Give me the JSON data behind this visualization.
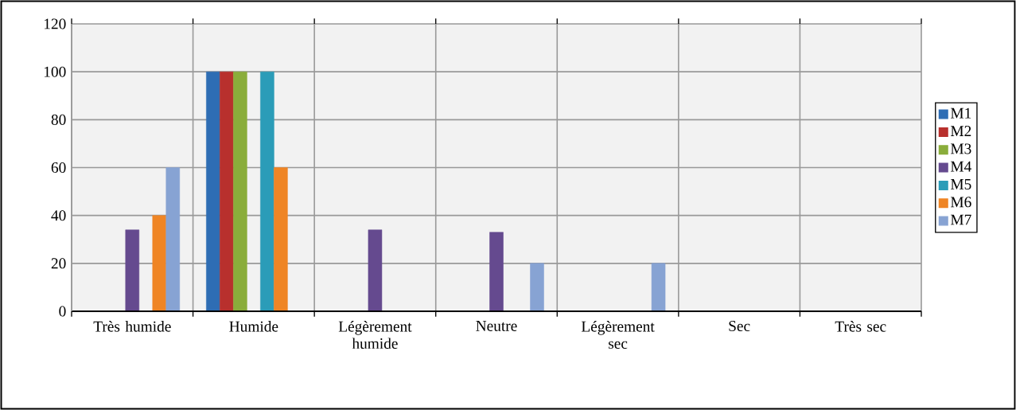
{
  "chart_data": {
    "type": "bar",
    "categories": [
      "Très humide",
      "Humide",
      "Légèrement humide",
      "Neutre",
      "Légèrement sec",
      "Sec",
      "Très sec"
    ],
    "series": [
      {
        "name": "M1",
        "color": "#2e6db4",
        "values": [
          0,
          100,
          0,
          0,
          0,
          0,
          0
        ]
      },
      {
        "name": "M2",
        "color": "#b8302d",
        "values": [
          0,
          100,
          0,
          0,
          0,
          0,
          0
        ]
      },
      {
        "name": "M3",
        "color": "#8aad3b",
        "values": [
          0,
          100,
          0,
          0,
          0,
          0,
          0
        ]
      },
      {
        "name": "M4",
        "color": "#654a8f",
        "values": [
          34,
          0,
          34,
          33,
          0,
          0,
          0
        ]
      },
      {
        "name": "M5",
        "color": "#2b9cb8",
        "values": [
          0,
          100,
          0,
          0,
          0,
          0,
          0
        ]
      },
      {
        "name": "M6",
        "color": "#ef8525",
        "values": [
          40,
          60,
          0,
          0,
          0,
          0,
          0
        ]
      },
      {
        "name": "M7",
        "color": "#87a3d3",
        "values": [
          60,
          0,
          0,
          20,
          20,
          0,
          0
        ]
      }
    ],
    "ylim": [
      0,
      120
    ],
    "yticks": [
      0,
      20,
      40,
      60,
      80,
      100,
      120
    ],
    "grid": true,
    "legend": "right"
  }
}
